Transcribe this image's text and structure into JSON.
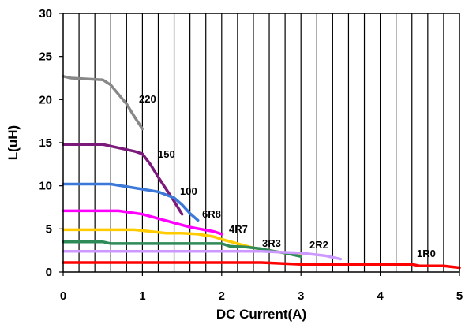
{
  "chart_data": {
    "type": "line",
    "xlabel": "DC Current(A)",
    "ylabel": "L(uH)",
    "xlim": [
      0,
      5
    ],
    "ylim": [
      0,
      30
    ],
    "x_ticks": [
      "0",
      "1",
      "2",
      "3",
      "4",
      "5"
    ],
    "y_ticks": [
      "0",
      "5",
      "10",
      "15",
      "20",
      "25",
      "30"
    ],
    "grid": "vertical",
    "legend": "none",
    "series": [
      {
        "name": "220",
        "color": "#888888",
        "x": [
          0,
          0.1,
          0.5,
          0.6,
          0.8,
          0.9,
          1.0
        ],
        "y": [
          22.7,
          22.5,
          22.3,
          21.7,
          19.5,
          18.0,
          16.6
        ]
      },
      {
        "name": "150",
        "color": "#7b1a7b",
        "x": [
          0,
          0.5,
          0.9,
          1.0,
          1.1,
          1.2,
          1.3,
          1.4,
          1.5
        ],
        "y": [
          14.8,
          14.8,
          14.0,
          13.7,
          12.5,
          11.0,
          9.6,
          8.2,
          6.7
        ]
      },
      {
        "name": "100",
        "color": "#3c78d8",
        "x": [
          0,
          0.6,
          1.0,
          1.2,
          1.4,
          1.5,
          1.6,
          1.7
        ],
        "y": [
          10.2,
          10.2,
          9.6,
          9.3,
          8.6,
          7.8,
          6.8,
          6.0
        ]
      },
      {
        "name": "6R8",
        "color": "#ff00ff",
        "x": [
          0,
          0.7,
          1.0,
          1.4,
          1.6,
          1.9,
          2.0
        ],
        "y": [
          7.1,
          7.1,
          6.7,
          5.7,
          5.2,
          4.7,
          4.4
        ]
      },
      {
        "name": "4R7",
        "color": "#ffcc00",
        "x": [
          0,
          0.9,
          1.3,
          1.5,
          1.7,
          1.9,
          2.0,
          2.2,
          2.4,
          2.6,
          2.8,
          3.0
        ],
        "y": [
          4.9,
          4.9,
          4.5,
          4.5,
          4.4,
          4.1,
          3.8,
          3.3,
          2.8,
          2.5,
          2.2,
          1.9
        ]
      },
      {
        "name": "3R3",
        "color": "#2e8b57",
        "x": [
          0,
          0.5,
          0.6,
          2.0,
          2.1,
          2.3,
          2.5,
          2.6,
          2.8,
          3.0
        ],
        "y": [
          3.5,
          3.5,
          3.3,
          3.3,
          3.0,
          2.9,
          2.7,
          2.5,
          2.2,
          1.8
        ]
      },
      {
        "name": "2R2",
        "color": "#cc99ff",
        "x": [
          0,
          2.5,
          3.0,
          3.3,
          3.5
        ],
        "y": [
          2.4,
          2.4,
          2.2,
          1.9,
          1.5
        ]
      },
      {
        "name": "1R0",
        "color": "#ff0000",
        "x": [
          0,
          2.0,
          2.5,
          3.0,
          4.0,
          4.4,
          4.5,
          4.8,
          4.9,
          5.0
        ],
        "y": [
          1.1,
          1.1,
          1.1,
          0.9,
          0.9,
          0.9,
          0.7,
          0.7,
          0.6,
          0.5
        ]
      }
    ]
  }
}
